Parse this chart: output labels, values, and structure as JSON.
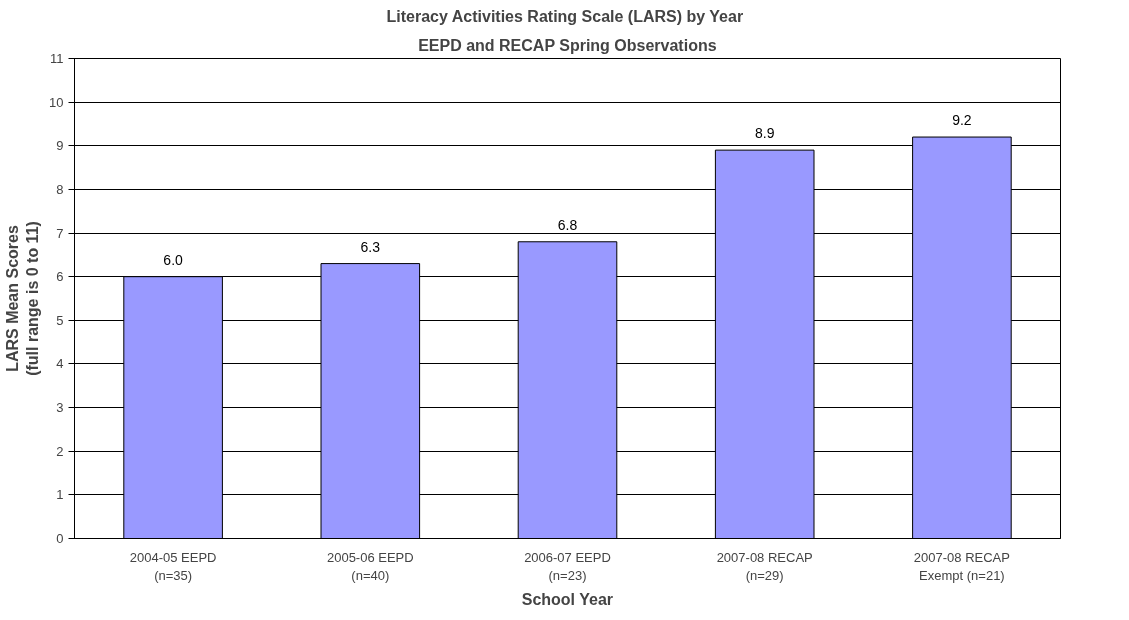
{
  "chart_data": {
    "type": "bar",
    "title": "Literacy Activities Rating Scale (LARS)  by Year",
    "subtitle": "EEPD and RECAP Spring Observations",
    "xlabel": "School Year",
    "ylabel": "LARS Mean Scores\n(full range is 0 to 11)",
    "categories": [
      "2004-05 EEPD\n(n=35)",
      "2005-06 EEPD\n(n=40)",
      "2006-07 EEPD\n(n=23)",
      "2007-08 RECAP\n(n=29)",
      "2007-08 RECAP\nExempt (n=21)"
    ],
    "values": [
      6.0,
      6.3,
      6.8,
      8.9,
      9.2
    ],
    "value_labels": [
      "6.0",
      "6.3",
      "6.8",
      "8.9",
      "9.2"
    ],
    "color": "#9999ff",
    "ylim": [
      0,
      11
    ],
    "yticks": [
      0,
      1,
      2,
      3,
      4,
      5,
      6,
      7,
      8,
      9,
      10,
      11
    ],
    "grid": "y"
  }
}
